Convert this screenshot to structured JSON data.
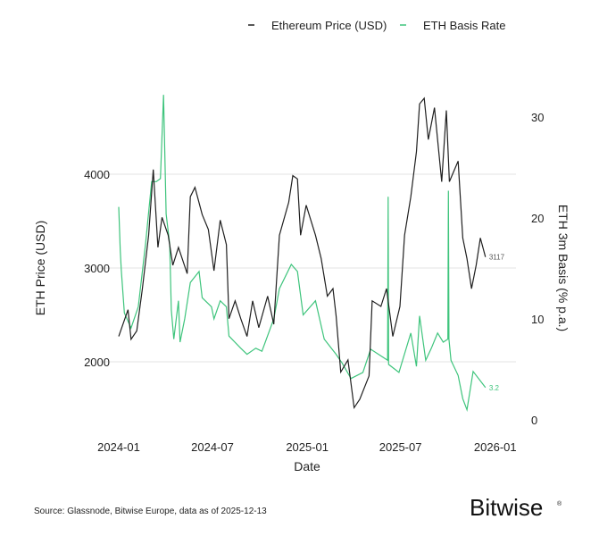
{
  "chart_data": {
    "type": "line",
    "xlabel": "Date",
    "ylabel_left": "ETH Price (USD)",
    "ylabel_right": "ETH 3m Basis (% p.a.)",
    "x_ticks": [
      "2024-01",
      "2024-07",
      "2025-01",
      "2025-07",
      "2026-01"
    ],
    "y_left_ticks": [
      2000,
      3000,
      4000
    ],
    "y_right_ticks": [
      0,
      10,
      20,
      30
    ],
    "grid": "horizontal at left-axis ticks",
    "legend_placement": "top",
    "colors": {
      "price": "#1f1f1f",
      "basis": "#3ec47c"
    },
    "end_labels": {
      "price": "3117",
      "basis": "3.2"
    },
    "series": [
      {
        "name": "Ethereum Price (USD)",
        "axis": "left",
        "points": [
          [
            "2024-01-01",
            2270
          ],
          [
            "2024-01-19",
            2555
          ],
          [
            "2024-01-25",
            2240
          ],
          [
            "2024-02-05",
            2330
          ],
          [
            "2024-02-16",
            2780
          ],
          [
            "2024-02-28",
            3350
          ],
          [
            "2024-03-08",
            4050
          ],
          [
            "2024-03-17",
            3220
          ],
          [
            "2024-03-25",
            3540
          ],
          [
            "2024-04-06",
            3350
          ],
          [
            "2024-04-15",
            3030
          ],
          [
            "2024-04-26",
            3220
          ],
          [
            "2024-05-13",
            2940
          ],
          [
            "2024-05-19",
            3760
          ],
          [
            "2024-05-28",
            3860
          ],
          [
            "2024-06-11",
            3570
          ],
          [
            "2024-06-23",
            3410
          ],
          [
            "2024-07-04",
            2970
          ],
          [
            "2024-07-16",
            3510
          ],
          [
            "2024-07-28",
            3250
          ],
          [
            "2024-08-02",
            2460
          ],
          [
            "2024-08-14",
            2650
          ],
          [
            "2024-08-25",
            2460
          ],
          [
            "2024-09-06",
            2270
          ],
          [
            "2024-09-17",
            2650
          ],
          [
            "2024-09-29",
            2365
          ],
          [
            "2024-10-16",
            2700
          ],
          [
            "2024-10-28",
            2400
          ],
          [
            "2024-11-08",
            3350
          ],
          [
            "2024-11-26",
            3700
          ],
          [
            "2024-12-04",
            3985
          ],
          [
            "2024-12-13",
            3950
          ],
          [
            "2024-12-19",
            3350
          ],
          [
            "2024-12-30",
            3670
          ],
          [
            "2025-01-17",
            3350
          ],
          [
            "2025-01-28",
            3100
          ],
          [
            "2025-02-09",
            2700
          ],
          [
            "2025-02-20",
            2780
          ],
          [
            "2025-02-26",
            2490
          ],
          [
            "2025-03-07",
            1890
          ],
          [
            "2025-03-21",
            2020
          ],
          [
            "2025-04-02",
            1510
          ],
          [
            "2025-04-13",
            1600
          ],
          [
            "2025-05-01",
            1850
          ],
          [
            "2025-05-07",
            2650
          ],
          [
            "2025-05-24",
            2590
          ],
          [
            "2025-06-04",
            2780
          ],
          [
            "2025-06-16",
            2270
          ],
          [
            "2025-06-30",
            2590
          ],
          [
            "2025-07-09",
            3350
          ],
          [
            "2025-07-21",
            3760
          ],
          [
            "2025-08-01",
            4240
          ],
          [
            "2025-08-07",
            4750
          ],
          [
            "2025-08-16",
            4810
          ],
          [
            "2025-08-24",
            4370
          ],
          [
            "2025-09-05",
            4710
          ],
          [
            "2025-09-19",
            3920
          ],
          [
            "2025-09-28",
            4680
          ],
          [
            "2025-10-04",
            3920
          ],
          [
            "2025-10-21",
            4140
          ],
          [
            "2025-10-30",
            3320
          ],
          [
            "2025-11-07",
            3100
          ],
          [
            "2025-11-16",
            2780
          ],
          [
            "2025-11-25",
            3030
          ],
          [
            "2025-12-03",
            3320
          ],
          [
            "2025-12-13",
            3117
          ]
        ]
      },
      {
        "name": "ETH Basis Rate",
        "axis": "right",
        "points": [
          [
            "2024-01-01",
            21.1
          ],
          [
            "2024-01-04",
            16.8
          ],
          [
            "2024-01-06",
            14.8
          ],
          [
            "2024-01-12",
            10.6
          ],
          [
            "2024-01-25",
            9.1
          ],
          [
            "2024-02-08",
            11.2
          ],
          [
            "2024-02-22",
            17.4
          ],
          [
            "2024-03-05",
            23.6
          ],
          [
            "2024-03-14",
            23.6
          ],
          [
            "2024-03-22",
            23.9
          ],
          [
            "2024-03-28",
            32.2
          ],
          [
            "2024-04-02",
            20.4
          ],
          [
            "2024-04-09",
            17.4
          ],
          [
            "2024-04-12",
            10.9
          ],
          [
            "2024-04-17",
            8.0
          ],
          [
            "2024-04-26",
            11.8
          ],
          [
            "2024-04-29",
            7.7
          ],
          [
            "2024-05-08",
            10.0
          ],
          [
            "2024-05-19",
            13.6
          ],
          [
            "2024-06-05",
            14.7
          ],
          [
            "2024-06-11",
            12.1
          ],
          [
            "2024-06-29",
            11.2
          ],
          [
            "2024-07-04",
            10.0
          ],
          [
            "2024-07-16",
            11.8
          ],
          [
            "2024-07-28",
            11.2
          ],
          [
            "2024-08-02",
            8.3
          ],
          [
            "2024-08-25",
            7.1
          ],
          [
            "2024-09-06",
            6.5
          ],
          [
            "2024-09-23",
            7.1
          ],
          [
            "2024-10-05",
            6.8
          ],
          [
            "2024-10-28",
            10.0
          ],
          [
            "2024-11-08",
            13.0
          ],
          [
            "2024-12-01",
            15.4
          ],
          [
            "2024-12-13",
            14.7
          ],
          [
            "2024-12-24",
            10.4
          ],
          [
            "2025-01-17",
            11.8
          ],
          [
            "2025-02-03",
            8.0
          ],
          [
            "2025-02-26",
            6.5
          ],
          [
            "2025-03-10",
            5.6
          ],
          [
            "2025-03-27",
            4.1
          ],
          [
            "2025-04-19",
            4.7
          ],
          [
            "2025-05-04",
            7.0
          ],
          [
            "2025-06-06",
            5.9
          ],
          [
            "2025-06-07",
            22.1
          ],
          [
            "2025-06-08",
            5.5
          ],
          [
            "2025-06-28",
            4.7
          ],
          [
            "2025-07-21",
            8.6
          ],
          [
            "2025-08-01",
            5.3
          ],
          [
            "2025-08-07",
            10.3
          ],
          [
            "2025-08-19",
            5.9
          ],
          [
            "2025-08-30",
            7.1
          ],
          [
            "2025-09-11",
            8.6
          ],
          [
            "2025-09-22",
            7.7
          ],
          [
            "2025-10-01",
            8.0
          ],
          [
            "2025-10-02",
            22.7
          ],
          [
            "2025-10-03",
            8.0
          ],
          [
            "2025-10-07",
            5.9
          ],
          [
            "2025-10-21",
            4.4
          ],
          [
            "2025-10-30",
            2.1
          ],
          [
            "2025-11-07",
            1.0
          ],
          [
            "2025-11-19",
            4.8
          ],
          [
            "2025-12-13",
            3.2
          ]
        ]
      }
    ]
  },
  "footer": {
    "source": "Source: Glassnode, Bitwise Europe, data as of 2025-12-13",
    "logo": "Bitwise"
  }
}
